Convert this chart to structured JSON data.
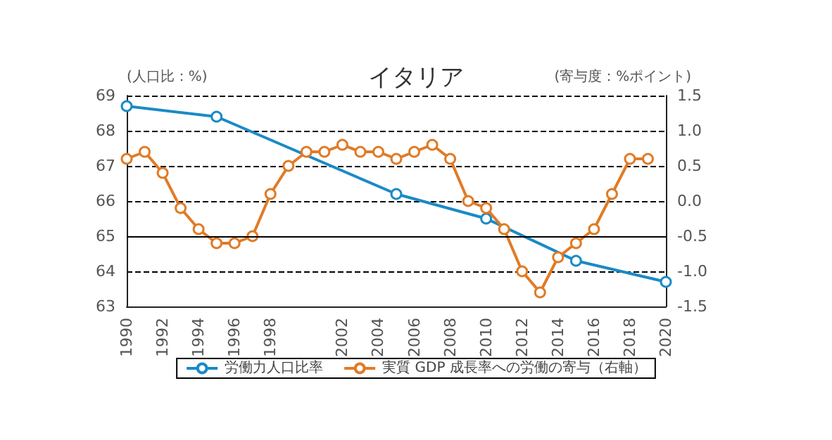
{
  "chart_data": {
    "type": "line",
    "title": "イタリア",
    "ylabel": "(人口比：%)",
    "y2label": "(寄与度：%ポイント)",
    "xlim": [
      1990,
      2020
    ],
    "xticks": [
      1990,
      1992,
      1994,
      1996,
      1998,
      2002,
      2004,
      2006,
      2008,
      2010,
      2012,
      2014,
      2016,
      2018,
      2020
    ],
    "ylim": [
      63,
      69
    ],
    "yticks": [
      63,
      64,
      65,
      66,
      67,
      68,
      69
    ],
    "y2lim": [
      -1.5,
      1.5
    ],
    "y2ticks": [
      {
        "value": -1.5,
        "label": "-1.5"
      },
      {
        "value": -1,
        "label": "-1.0"
      },
      {
        "value": -0.5,
        "label": "-0.5"
      },
      {
        "value": 0,
        "label": "0.0"
      },
      {
        "value": 0.5,
        "label": "0.5"
      },
      {
        "value": 1,
        "label": "1.0"
      },
      {
        "value": 1.5,
        "label": "1.5"
      }
    ],
    "grid": "y",
    "legend": "bottom",
    "marker": "circle",
    "line_style": "solid",
    "ref_lines": [
      {
        "axis": "y",
        "value": 65,
        "color": "#000000",
        "line_style": "solid"
      }
    ],
    "series": [
      {
        "name": "労働力人口比率",
        "color": "#1a8ac6",
        "x": [
          1990,
          1995,
          2005,
          2010,
          2015,
          2020
        ],
        "values": [
          68.7,
          68.4,
          66.2,
          65.5,
          64.3,
          63.7
        ]
      },
      {
        "name": "実質 GDP 成長率への労働の寄与（右軸）",
        "color": "#e07b26",
        "axis": "y2",
        "x": [
          1990,
          1991,
          1992,
          1993,
          1994,
          1995,
          1996,
          1997,
          1998,
          1999,
          2000,
          2001,
          2002,
          2003,
          2004,
          2005,
          2006,
          2007,
          2008,
          2009,
          2010,
          2011,
          2012,
          2013,
          2014,
          2015,
          2016,
          2017,
          2018,
          2019
        ],
        "values": [
          0.6,
          0.7,
          0.4,
          -0.1,
          -0.4,
          -0.6,
          -0.6,
          -0.5,
          0.1,
          0.5,
          0.7,
          0.7,
          0.8,
          0.7,
          0.7,
          0.6,
          0.7,
          0.8,
          0.6,
          0.0,
          -0.1,
          -0.4,
          -1.0,
          -1.3,
          -0.8,
          -0.6,
          -0.4,
          0.1,
          0.6,
          0.6
        ]
      }
    ]
  }
}
